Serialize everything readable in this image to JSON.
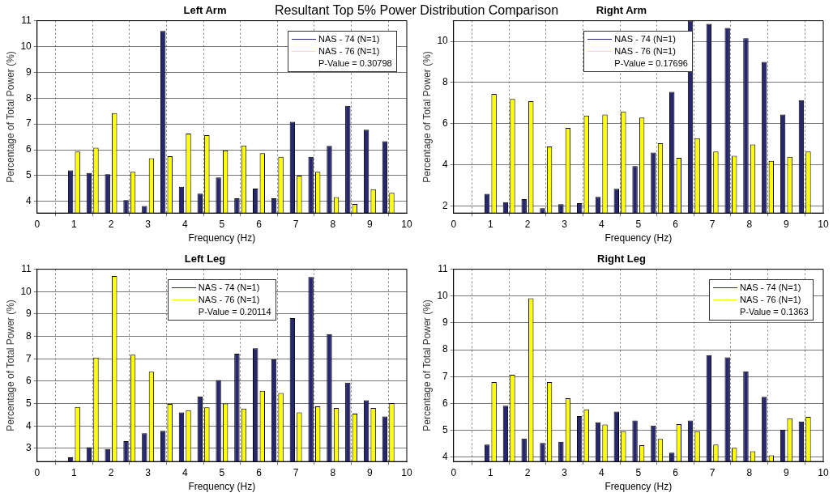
{
  "chart_data": [
    {
      "type": "bar",
      "title": "Left Arm",
      "xlabel": "Frequency (Hz)",
      "ylabel": "Percentage of Total Power (%)",
      "x": [
        1,
        1.5,
        2,
        2.5,
        3,
        3.5,
        4,
        4.5,
        5,
        5.5,
        6,
        6.5,
        7,
        7.5,
        8,
        8.5,
        9,
        9.5
      ],
      "series": [
        {
          "name": "NAS - 74 (N=1)",
          "color": "#27276f",
          "values": [
            5.2,
            5.1,
            5.05,
            4.05,
            3.82,
            10.6,
            4.57,
            4.3,
            4.93,
            4.12,
            4.5,
            4.12,
            7.08,
            5.73,
            6.15,
            7.7,
            6.78,
            6.33
          ]
        },
        {
          "name": "NAS - 76 (N=1)",
          "color": "#ffff00",
          "values": [
            5.93,
            6.08,
            7.42,
            5.15,
            5.67,
            5.75,
            6.63,
            6.57,
            5.98,
            6.17,
            5.87,
            5.73,
            5.0,
            5.15,
            4.17,
            3.9,
            4.47,
            4.33
          ]
        }
      ],
      "xlim": [
        0,
        10
      ],
      "xticks": [
        0,
        1,
        2,
        3,
        4,
        5,
        6,
        7,
        8,
        9,
        10
      ],
      "ylim": [
        3.55,
        11
      ],
      "yticks": [
        4,
        5,
        6,
        7,
        8,
        9,
        10,
        11
      ],
      "grid": true,
      "legend": "top right",
      "annotations": [
        "Resultant Top 5% Power Distribution Comparison",
        "P-Value = 0.30798"
      ]
    },
    {
      "type": "bar",
      "title": "Right Arm",
      "xlabel": "Frequency (Hz)",
      "ylabel": "Percentage of Total Power (%)",
      "x": [
        1,
        1.5,
        2,
        2.5,
        3,
        3.5,
        4,
        4.5,
        5,
        5.5,
        6,
        6.5,
        7,
        7.5,
        8,
        8.5,
        9,
        9.5
      ],
      "series": [
        {
          "name": "NAS - 74 (N=1)",
          "color": "#27276f",
          "values": [
            2.6,
            2.2,
            2.35,
            1.9,
            2.1,
            2.15,
            2.45,
            2.85,
            3.95,
            4.6,
            7.55,
            11,
            10.85,
            10.65,
            10.15,
            9.0,
            6.45,
            7.15
          ]
        },
        {
          "name": "NAS - 76 (N=1)",
          "color": "#ffff00",
          "values": [
            7.45,
            7.2,
            7.1,
            4.9,
            5.8,
            6.4,
            6.45,
            6.6,
            6.3,
            5.05,
            4.35,
            5.3,
            4.65,
            4.45,
            5.0,
            4.2,
            4.4,
            4.65
          ]
        }
      ],
      "xlim": [
        0,
        10
      ],
      "xticks": [
        0,
        1,
        2,
        3,
        4,
        5,
        6,
        7,
        8,
        9,
        10
      ],
      "ylim": [
        1.67,
        11
      ],
      "yticks": [
        2,
        4,
        6,
        8,
        10
      ],
      "grid": true,
      "legend": "top",
      "annotations": [
        "P-Value = 0.17696"
      ]
    },
    {
      "type": "bar",
      "title": "Left Leg",
      "xlabel": "Frequency (Hz)",
      "ylabel": "Percentage of Total Power (%)",
      "x": [
        1,
        1.5,
        2,
        2.5,
        3,
        3.5,
        4,
        4.5,
        5,
        5.5,
        6,
        6.5,
        7,
        7.5,
        8,
        8.5,
        9,
        9.5
      ],
      "series": [
        {
          "name": "NAS - 74 (N=1)",
          "color": "#27276f",
          "values": [
            2.6,
            3.05,
            2.97,
            3.32,
            3.67,
            3.78,
            4.6,
            5.32,
            6.05,
            7.23,
            7.47,
            6.98,
            8.82,
            10.65,
            8.1,
            5.93,
            5.15,
            4.42
          ]
        },
        {
          "name": "NAS - 76 (N=1)",
          "color": "#ffff00",
          "values": [
            4.85,
            7.05,
            10.7,
            7.18,
            6.42,
            4.98,
            4.7,
            4.83,
            5.0,
            4.78,
            5.57,
            5.47,
            4.6,
            4.88,
            4.8,
            4.55,
            4.8,
            5.02
          ]
        }
      ],
      "xlim": [
        0,
        10
      ],
      "xticks": [
        0,
        1,
        2,
        3,
        4,
        5,
        6,
        7,
        8,
        9,
        10
      ],
      "ylim": [
        2.41,
        11
      ],
      "yticks": [
        3,
        4,
        5,
        6,
        7,
        8,
        9,
        10,
        11
      ],
      "grid": true,
      "legend": "top",
      "annotations": [
        "P-Value = 0.20114"
      ]
    },
    {
      "type": "bar",
      "title": "Right Leg",
      "xlabel": "Frequency (Hz)",
      "ylabel": "Percentage of Total Power (%)",
      "x": [
        1,
        1.5,
        2,
        2.5,
        3,
        3.5,
        4,
        4.5,
        5,
        5.5,
        6,
        6.5,
        7,
        7.5,
        8,
        8.5,
        9,
        9.5
      ],
      "series": [
        {
          "name": "NAS - 74 (N=1)",
          "color": "#27276f",
          "values": [
            4.47,
            5.92,
            4.7,
            4.53,
            4.58,
            5.53,
            5.3,
            5.7,
            5.37,
            5.18,
            4.17,
            5.37,
            7.8,
            7.72,
            7.2,
            6.25,
            5.03,
            5.33
          ]
        },
        {
          "name": "NAS - 76 (N=1)",
          "color": "#ffff00",
          "values": [
            6.8,
            7.07,
            9.92,
            6.8,
            6.2,
            5.78,
            5.22,
            4.97,
            4.45,
            4.68,
            5.23,
            4.97,
            4.47,
            4.35,
            4.22,
            4.07,
            5.45,
            5.5
          ]
        }
      ],
      "xlim": [
        0,
        10
      ],
      "xticks": [
        0,
        1,
        2,
        3,
        4,
        5,
        6,
        7,
        8,
        9,
        10
      ],
      "ylim": [
        3.84,
        11
      ],
      "yticks": [
        4,
        5,
        6,
        7,
        8,
        9,
        10,
        11
      ],
      "grid": true,
      "legend": "top right",
      "annotations": [
        "P-Value = 0.1363"
      ]
    }
  ]
}
